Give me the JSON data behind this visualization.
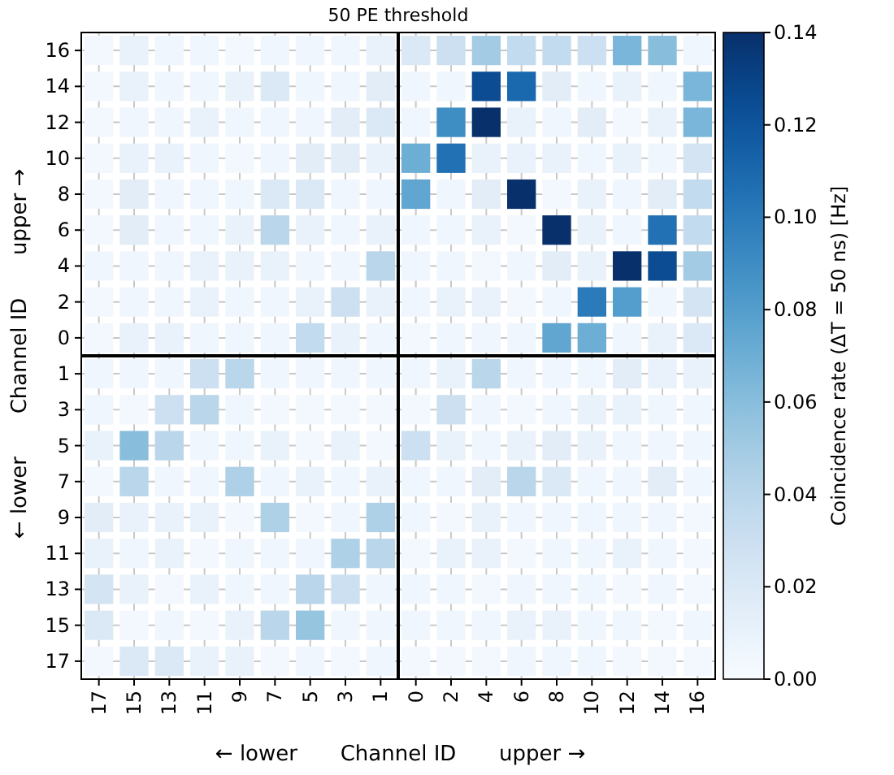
{
  "chart_data": {
    "type": "heatmap",
    "title": "50 PE threshold",
    "xlabel": "Channel ID",
    "ylabel": "Channel ID",
    "clabel": "Coincidence rate (ΔT = 50 ns) [Hz]",
    "annotations": [
      "← lower",
      "upper →",
      "← lower",
      "upper →"
    ],
    "categories": [
      "17",
      "15",
      "13",
      "11",
      "9",
      "7",
      "5",
      "3",
      "1",
      "0",
      "2",
      "4",
      "6",
      "8",
      "10",
      "12",
      "14",
      "16"
    ],
    "y_categories": [
      "16",
      "14",
      "12",
      "10",
      "8",
      "6",
      "4",
      "2",
      "0",
      "1",
      "3",
      "5",
      "7",
      "9",
      "11",
      "13",
      "15",
      "17"
    ],
    "cells": [
      [
        0.003,
        0.01,
        0.005,
        0.005,
        0.003,
        0.005,
        0.005,
        0.005,
        0.01,
        0.02,
        0.03,
        0.05,
        0.035,
        0.035,
        0.03,
        0.065,
        0.06,
        0.005
      ],
      [
        0.003,
        0.01,
        0.005,
        0.005,
        0.01,
        0.02,
        0.005,
        0.005,
        0.015,
        0.005,
        0.005,
        0.125,
        0.11,
        0.015,
        0.005,
        0.01,
        0.005,
        0.065
      ],
      [
        0.003,
        0.005,
        0.005,
        0.01,
        0.005,
        0.005,
        0.005,
        0.015,
        0.02,
        0.005,
        0.09,
        0.14,
        0.01,
        0.005,
        0.015,
        0.003,
        0.01,
        0.065
      ],
      [
        0.003,
        0.01,
        0.01,
        0.005,
        0.003,
        0.005,
        0.015,
        0.015,
        0.01,
        0.07,
        0.105,
        0.01,
        0.01,
        0.01,
        0.005,
        0.01,
        0.005,
        0.025
      ],
      [
        0.003,
        0.015,
        0.005,
        0.005,
        0.005,
        0.02,
        0.02,
        0.005,
        0.005,
        0.075,
        0.005,
        0.015,
        0.14,
        0.003,
        0.01,
        0.005,
        0.015,
        0.035
      ],
      [
        0.003,
        0.015,
        0.005,
        0.005,
        0.01,
        0.04,
        0.01,
        0.005,
        0.01,
        0.005,
        0.005,
        0.01,
        0.003,
        0.14,
        0.01,
        0.005,
        0.105,
        0.035
      ],
      [
        0.005,
        0.005,
        0.005,
        0.01,
        0.01,
        0.01,
        0.005,
        0.005,
        0.04,
        0.005,
        0.005,
        0.003,
        0.005,
        0.015,
        0.01,
        0.14,
        0.125,
        0.05
      ],
      [
        0.003,
        0.005,
        0.005,
        0.01,
        0.005,
        0.005,
        0.01,
        0.03,
        0.01,
        0.005,
        0.01,
        0.01,
        0.003,
        0.005,
        0.1,
        0.08,
        0.005,
        0.025
      ],
      [
        0.003,
        0.01,
        0.01,
        0.005,
        0.005,
        0.005,
        0.035,
        0.01,
        0.005,
        0.003,
        0.005,
        0.005,
        0.005,
        0.075,
        0.07,
        0.005,
        0.01,
        0.02
      ],
      [
        0.005,
        0.005,
        0.005,
        0.03,
        0.04,
        0.005,
        0.005,
        0.005,
        0.005,
        0.005,
        0.01,
        0.04,
        0.005,
        0.005,
        0.005,
        0.015,
        0.01,
        0.01
      ],
      [
        0.005,
        0.003,
        0.03,
        0.04,
        0.005,
        0.003,
        0.003,
        0.003,
        0.003,
        0.003,
        0.03,
        0.005,
        0.003,
        0.005,
        0.01,
        0.01,
        0.005,
        0.005
      ],
      [
        0.01,
        0.06,
        0.04,
        0.005,
        0.005,
        0.01,
        0.003,
        0.01,
        0.003,
        0.03,
        0.01,
        0.005,
        0.01,
        0.015,
        0.01,
        0.005,
        0.005,
        0.005
      ],
      [
        0.003,
        0.04,
        0.005,
        0.005,
        0.045,
        0.005,
        0.01,
        0.005,
        0.01,
        0.005,
        0.005,
        0.015,
        0.04,
        0.02,
        0.005,
        0.005,
        0.015,
        0.005
      ],
      [
        0.015,
        0.01,
        0.01,
        0.01,
        0.003,
        0.045,
        0.003,
        0.005,
        0.045,
        0.005,
        0.003,
        0.01,
        0.005,
        0.005,
        0.005,
        0.005,
        0.005,
        0.003
      ],
      [
        0.01,
        0.005,
        0.01,
        0.003,
        0.005,
        0.005,
        0.005,
        0.045,
        0.04,
        0.003,
        0.01,
        0.01,
        0.003,
        0.005,
        0.005,
        0.01,
        0.005,
        0.003
      ],
      [
        0.025,
        0.01,
        0.003,
        0.01,
        0.005,
        0.005,
        0.04,
        0.03,
        0.005,
        0.005,
        0.005,
        0.003,
        0.005,
        0.005,
        0.005,
        0.003,
        0.005,
        0.003
      ],
      [
        0.02,
        0.003,
        0.005,
        0.003,
        0.01,
        0.04,
        0.055,
        0.005,
        0.005,
        0.005,
        0.005,
        0.005,
        0.01,
        0.01,
        0.005,
        0.005,
        0.003,
        0.005
      ],
      [
        0.003,
        0.02,
        0.02,
        0.01,
        0.01,
        0.003,
        0.005,
        0.003,
        0.005,
        0.003,
        0.003,
        0.003,
        0.005,
        0.005,
        0.005,
        0.003,
        0.003,
        0.003
      ]
    ],
    "clim": [
      0,
      0.14
    ],
    "cticks": [
      {
        "value": 0,
        "label": "0.00"
      },
      {
        "value": 0.02,
        "label": "0.02"
      },
      {
        "value": 0.04,
        "label": "0.04"
      },
      {
        "value": 0.06,
        "label": "0.06"
      },
      {
        "value": 0.08,
        "label": "0.08"
      },
      {
        "value": 0.1,
        "label": "0.10"
      },
      {
        "value": 0.12,
        "label": "0.12"
      },
      {
        "value": 0.14,
        "label": "0.14"
      }
    ],
    "grid": true
  }
}
